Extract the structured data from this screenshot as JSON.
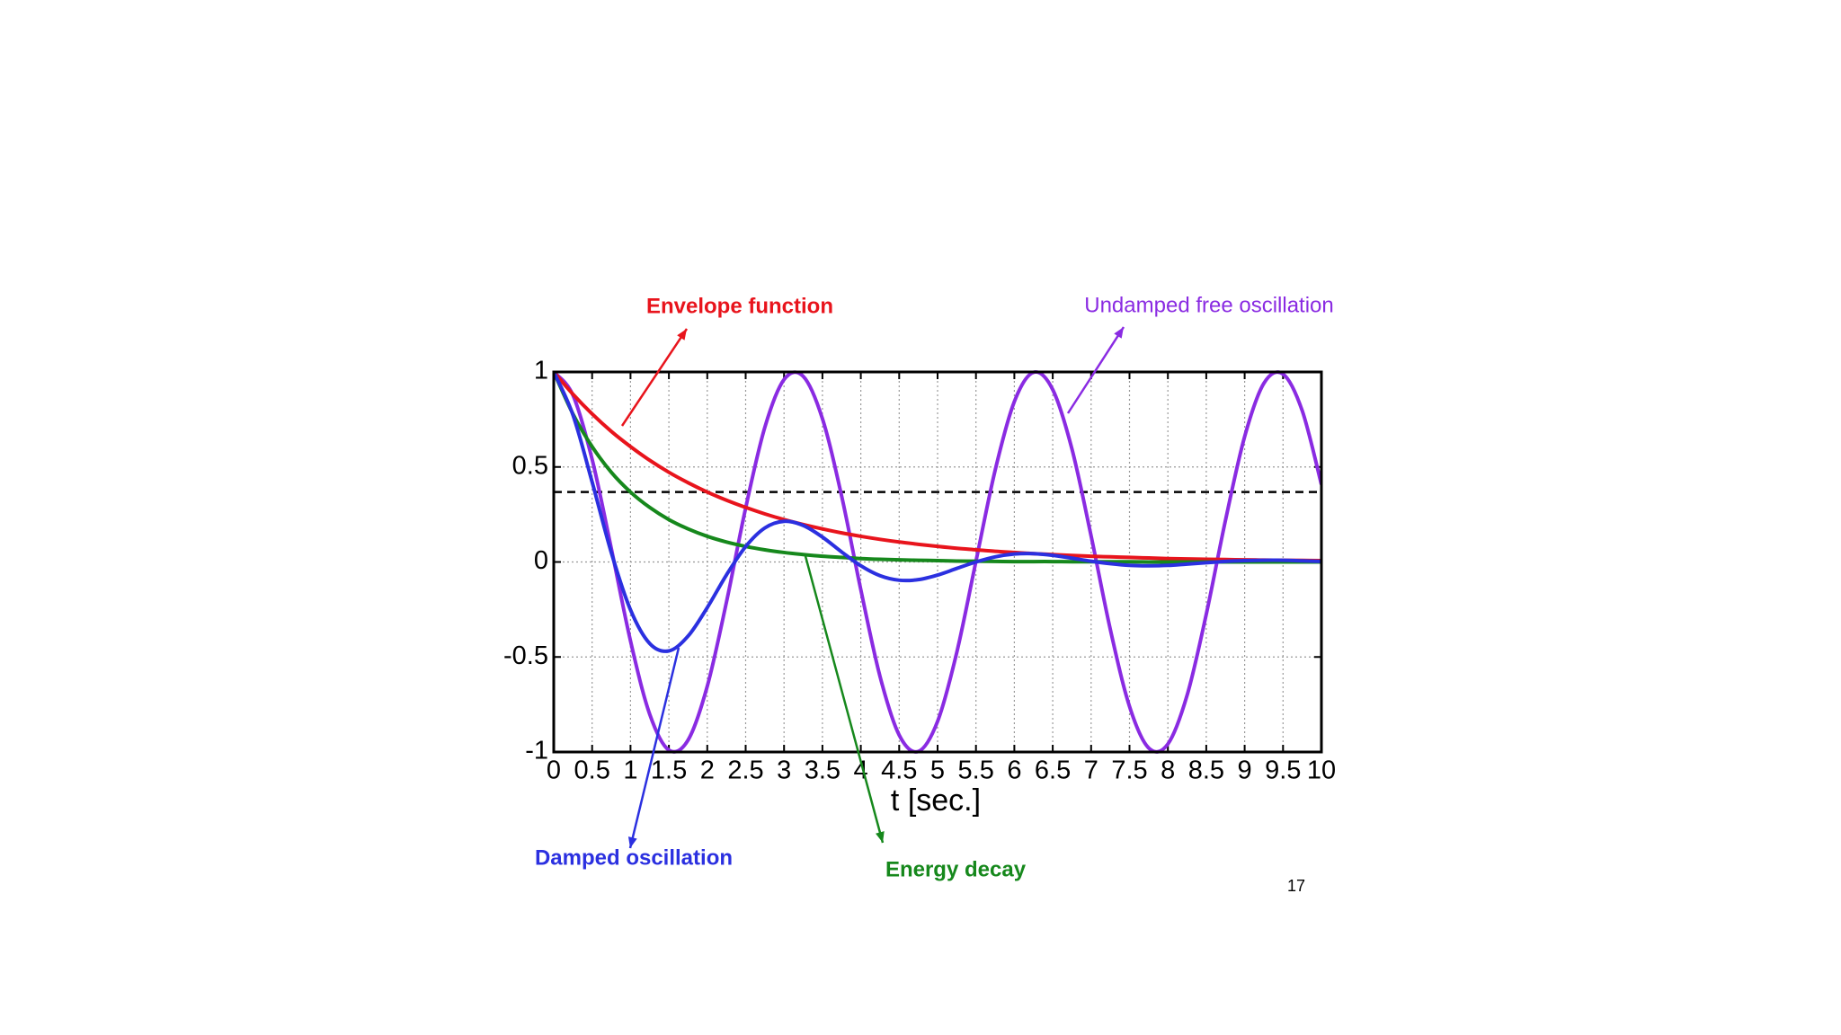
{
  "chart_data": {
    "type": "line",
    "xlabel": "t [sec.]",
    "x": [
      0,
      0.25,
      0.5,
      0.75,
      1,
      1.25,
      1.5,
      1.75,
      2,
      2.25,
      2.5,
      2.75,
      3,
      3.25,
      3.5,
      3.75,
      4,
      4.25,
      4.5,
      4.75,
      5,
      5.25,
      5.5,
      5.75,
      6,
      6.25,
      6.5,
      6.75,
      7,
      7.25,
      7.5,
      7.75,
      8,
      8.25,
      8.5,
      8.75,
      9,
      9.25,
      9.5,
      9.75,
      10
    ],
    "series": [
      {
        "name": "Undamped free oscillation",
        "color": "#8a2be2",
        "values": [
          1,
          0.878,
          0.54,
          0.071,
          -0.416,
          -0.801,
          -0.99,
          -0.937,
          -0.654,
          -0.211,
          0.284,
          0.709,
          0.96,
          0.977,
          0.754,
          0.347,
          -0.146,
          -0.602,
          -0.911,
          -0.997,
          -0.839,
          -0.476,
          0.004,
          0.483,
          0.844,
          0.998,
          0.907,
          0.595,
          0.137,
          -0.355,
          -0.76,
          -0.979,
          -0.958,
          -0.702,
          -0.275,
          0.219,
          0.66,
          0.94,
          0.989,
          0.796,
          0.408
        ]
      },
      {
        "name": "Envelope function",
        "color": "#e8141c",
        "values": [
          1,
          0.883,
          0.779,
          0.687,
          0.607,
          0.535,
          0.472,
          0.417,
          0.368,
          0.325,
          0.287,
          0.253,
          0.223,
          0.197,
          0.174,
          0.153,
          0.135,
          0.119,
          0.105,
          0.093,
          0.082,
          0.072,
          0.064,
          0.056,
          0.05,
          0.044,
          0.039,
          0.034,
          0.03,
          0.027,
          0.024,
          0.021,
          0.018,
          0.016,
          0.014,
          0.013,
          0.011,
          0.01,
          0.009,
          0.008,
          0.007
        ]
      },
      {
        "name": "Energy decay",
        "color": "#16881c",
        "values": [
          1,
          0.779,
          0.607,
          0.472,
          0.368,
          0.287,
          0.223,
          0.174,
          0.135,
          0.105,
          0.082,
          0.064,
          0.05,
          0.039,
          0.03,
          0.024,
          0.018,
          0.014,
          0.011,
          0.009,
          0.007,
          0.005,
          0.004,
          0.003,
          0.002,
          0.002,
          0.002,
          0.001,
          0.001,
          0.001,
          0.001,
          0,
          0,
          0,
          0,
          0,
          0,
          0,
          0,
          0,
          0
        ]
      },
      {
        "name": "Damped oscillation",
        "color": "#2b30e0",
        "values": [
          1,
          0.774,
          0.421,
          0.049,
          -0.252,
          -0.429,
          -0.468,
          -0.39,
          -0.24,
          -0.068,
          0.081,
          0.179,
          0.214,
          0.192,
          0.131,
          0.053,
          -0.02,
          -0.072,
          -0.096,
          -0.093,
          -0.069,
          -0.034,
          0,
          0.027,
          0.042,
          0.044,
          0.035,
          0.02,
          0.004,
          -0.009,
          -0.018,
          -0.02,
          -0.018,
          -0.011,
          -0.004,
          0.003,
          0.007,
          0.009,
          0.009,
          0.006,
          0.003
        ]
      }
    ],
    "hline": 0.368,
    "xlim": [
      0,
      10
    ],
    "ylim": [
      -1,
      1
    ],
    "xticks": [
      0,
      0.5,
      1,
      1.5,
      2,
      2.5,
      3,
      3.5,
      4,
      4.5,
      5,
      5.5,
      6,
      6.5,
      7,
      7.5,
      8,
      8.5,
      9,
      9.5,
      10
    ],
    "yticks": [
      -1,
      -0.5,
      0,
      0.5,
      1
    ],
    "grid": true
  },
  "page_number": "17"
}
